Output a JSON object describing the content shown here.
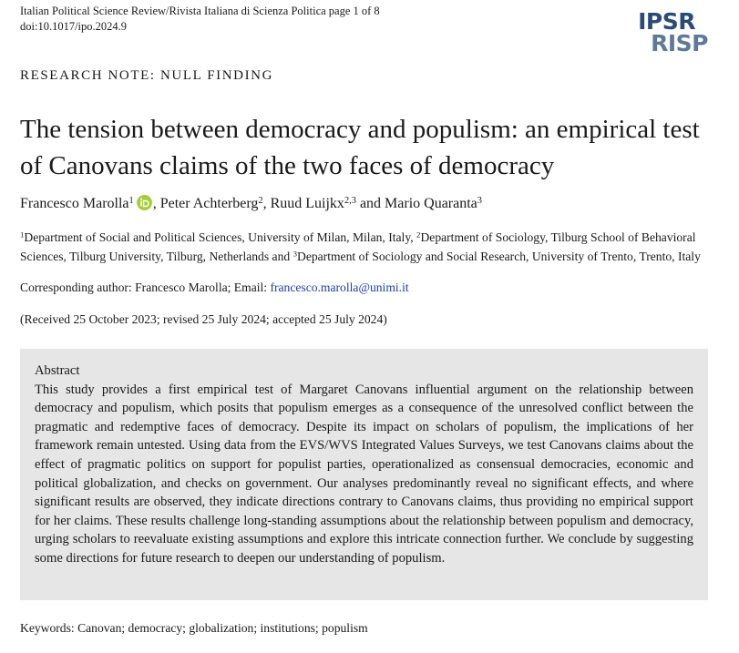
{
  "header": {
    "journal": "Italian Political Science Review/Rivista Italiana di Scienza Politica page 1 of 8",
    "doi": "doi:10.1017/ipo.2024.9",
    "logo": [
      "IPSR",
      "RISP"
    ]
  },
  "section_label": "RESEARCH NOTE: NULL FINDING",
  "title": "The tension between democracy and populism: an empirical test of Canovans claims of the two faces of democracy",
  "authors": [
    {
      "name": "Francesco Marolla",
      "sup": "1",
      "after": ", "
    },
    {
      "name": "Peter Achterberg",
      "sup": "2",
      "after": ", "
    },
    {
      "name": "Ruud Luijkx",
      "sup": "2,3",
      "after": " and "
    },
    {
      "name": "Mario Quaranta",
      "sup": "3"
    }
  ],
  "affiliations": [
    {
      "sup": "1",
      "text": "Department of Social and Political Sciences, University of Milan, Milan, Italy, "
    },
    {
      "sup": "2",
      "text": "Department of Sociology, Tilburg School of Behavioral Sciences, Tilburg University, Tilburg, Netherlands and "
    },
    {
      "sup": "3",
      "text": "Department of Sociology and Social Research, University of Trento, Trento, Italy"
    }
  ],
  "corresponding": {
    "label": "Corresponding author: Francesco Marolla; Email: ",
    "email": "francesco.marolla@unimi.it"
  },
  "received": "(Received 25 October 2023; revised 25 July 2024; accepted 25 July 2024)",
  "abstract": {
    "heading": "Abstract",
    "text": "This study provides a first empirical test of Margaret Canovans influential argument on the relationship between democracy and populism, which posits that populism emerges as a consequence of the unresolved conflict between the pragmatic and redemptive faces of democracy. Despite its impact on scholars of populism, the implications of her framework remain untested. Using data from the EVS/WVS Integrated Values Surveys, we test Canovans claims about the effect of pragmatic politics on support for populist parties, operationalized as consensual democracies, economic and political globalization, and checks on government. Our analyses predominantly reveal no significant effects, and where significant results are observed, they indicate directions contrary to Canovans claims, thus providing no empirical support for her claims. These results challenge long-standing assumptions about the relationship between populism and democracy, urging scholars to reevaluate existing assumptions and explore this intricate connection further. We conclude by suggesting some directions for future research to deepen our understanding of populism."
  },
  "keywords": {
    "label": "Keywords: ",
    "text": "Canovan; democracy; globalization; institutions; populism"
  }
}
